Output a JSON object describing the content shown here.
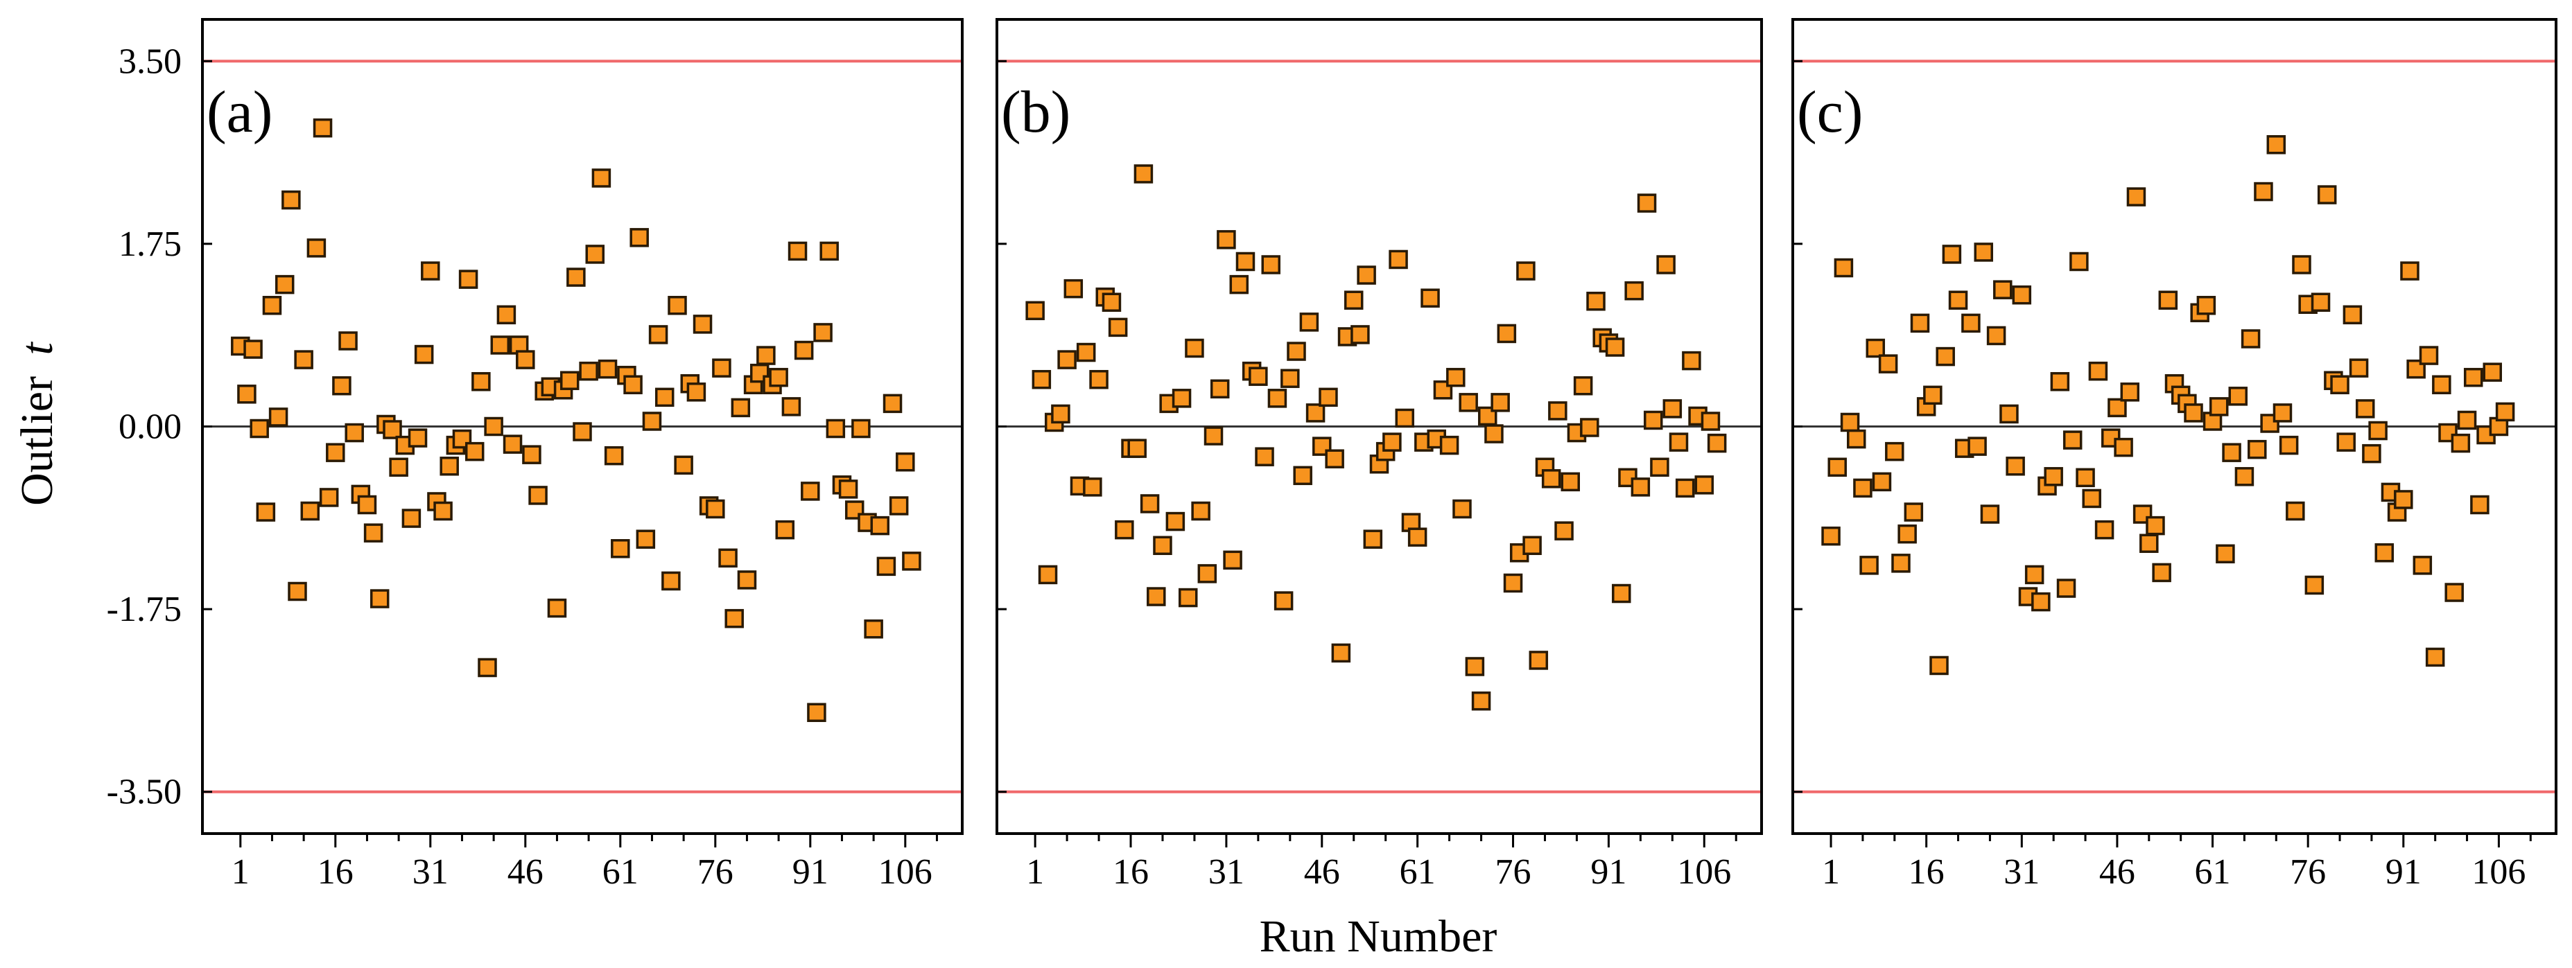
{
  "colors": {
    "point_fill": "#f7931e",
    "limit_line": "#f0696b",
    "zero_line": "#333333"
  },
  "chart_data": {
    "type": "scatter",
    "ylabel": "Outlier",
    "ylabel_italic": "t",
    "xlabel": "Run Number",
    "ylim": [
      -3.9,
      3.9
    ],
    "xlim": [
      -5,
      115
    ],
    "y_ticks": [
      3.5,
      1.75,
      0.0,
      -1.75,
      -3.5
    ],
    "y_tick_labels": [
      "3.50",
      "1.75",
      "0.00",
      "-1.75",
      "-3.50"
    ],
    "x_ticks": [
      1,
      16,
      31,
      46,
      61,
      76,
      91,
      106
    ],
    "x_tick_labels": [
      "1",
      "16",
      "31",
      "46",
      "61",
      "76",
      "91",
      "106"
    ],
    "x_minor_step": 5,
    "reference_lines": [
      3.5,
      -3.5
    ],
    "zero_line": 0,
    "panels": [
      {
        "label": "(a)",
        "y": [
          0.77,
          0.31,
          0.74,
          -0.02,
          -0.82,
          1.16,
          0.09,
          1.36,
          2.17,
          -1.58,
          0.64,
          -0.81,
          1.71,
          2.86,
          -0.68,
          -0.25,
          0.39,
          0.82,
          -0.06,
          -0.65,
          -0.75,
          -1.02,
          -1.65,
          0.02,
          -0.03,
          -0.39,
          -0.18,
          -0.88,
          -0.11,
          0.69,
          1.49,
          -0.72,
          -0.81,
          -0.38,
          -0.18,
          -0.12,
          1.41,
          -0.24,
          0.43,
          -2.31,
          0.0,
          0.78,
          1.07,
          -0.17,
          0.78,
          0.64,
          -0.27,
          -0.66,
          0.34,
          0.38,
          -1.74,
          0.35,
          0.44,
          1.43,
          -0.05,
          0.53,
          1.65,
          2.38,
          0.55,
          -0.28,
          -1.17,
          0.49,
          0.4,
          1.81,
          -1.08,
          0.05,
          0.88,
          0.28,
          -1.48,
          1.16,
          -0.37,
          0.41,
          0.33,
          0.98,
          -0.76,
          -0.79,
          0.56,
          -1.26,
          -1.84,
          0.18,
          -1.47,
          0.4,
          0.51,
          0.68,
          0.4,
          0.47,
          -0.99,
          0.19,
          1.68,
          0.73,
          -0.62,
          -2.74,
          0.9,
          1.68,
          -0.02,
          -0.56,
          -0.6,
          -0.8,
          -0.02,
          -0.92,
          -1.94,
          -0.95,
          -1.34,
          0.22,
          -0.76,
          -0.34,
          -1.29
        ]
      },
      {
        "label": "(b)",
        "y": [
          1.11,
          0.45,
          -1.42,
          0.04,
          0.12,
          0.64,
          1.32,
          -0.57,
          0.71,
          -0.58,
          0.45,
          1.24,
          1.19,
          0.95,
          -0.99,
          -0.21,
          -0.21,
          2.42,
          -0.74,
          -1.63,
          -1.14,
          0.22,
          -0.91,
          0.27,
          -1.64,
          0.75,
          -0.81,
          -1.41,
          -0.09,
          0.36,
          1.79,
          -1.28,
          1.36,
          1.58,
          0.53,
          0.48,
          -0.29,
          1.55,
          0.27,
          -1.67,
          0.46,
          0.72,
          -0.47,
          1.0,
          0.13,
          -0.19,
          0.28,
          -0.31,
          -2.17,
          0.86,
          1.21,
          0.88,
          1.45,
          -1.08,
          -0.36,
          -0.24,
          -0.15,
          1.6,
          0.08,
          -0.92,
          -1.06,
          -0.15,
          1.23,
          -0.12,
          0.35,
          -0.18,
          0.47,
          -0.79,
          0.23,
          -2.3,
          -2.63,
          0.1,
          -0.07,
          0.23,
          0.89,
          -1.5,
          -1.21,
          1.49,
          -1.14,
          -2.24,
          -0.39,
          -0.5,
          0.15,
          -1.0,
          -0.53,
          -0.06,
          0.39,
          -0.01,
          1.2,
          0.85,
          0.8,
          0.76,
          -1.6,
          -0.49,
          1.3,
          -0.58,
          2.14,
          0.06,
          -0.39,
          1.55,
          0.17,
          -0.15,
          -0.59,
          0.63,
          0.1,
          -0.56,
          0.05,
          -0.16
        ]
      },
      {
        "label": "(c)",
        "y": [
          -1.05,
          -0.39,
          1.52,
          0.04,
          -0.12,
          -0.59,
          -1.33,
          0.75,
          -0.53,
          0.6,
          -0.24,
          -1.31,
          -1.03,
          -0.82,
          0.99,
          0.19,
          0.3,
          -2.29,
          0.67,
          1.65,
          1.21,
          -0.21,
          0.99,
          -0.19,
          1.67,
          -0.84,
          0.87,
          1.31,
          0.12,
          -0.38,
          1.26,
          -1.63,
          -1.42,
          -1.68,
          -0.57,
          -0.48,
          0.43,
          -1.55,
          -0.13,
          1.58,
          -0.49,
          -0.69,
          0.53,
          -0.99,
          -0.11,
          0.18,
          -0.2,
          0.33,
          2.2,
          -0.84,
          -1.12,
          -0.95,
          -1.4,
          1.21,
          0.41,
          0.3,
          0.22,
          0.13,
          1.09,
          1.16,
          0.05,
          0.19,
          -1.22,
          -0.25,
          0.29,
          -0.48,
          0.84,
          -0.22,
          2.25,
          0.03,
          2.7,
          0.13,
          -0.18,
          -0.81,
          1.55,
          1.17,
          -1.52,
          1.19,
          2.22,
          0.44,
          0.4,
          -0.15,
          1.07,
          0.56,
          0.17,
          -0.26,
          -0.04,
          -1.21,
          -0.63,
          -0.82,
          -0.7,
          1.49,
          0.55,
          -1.33,
          0.68,
          -2.21,
          0.4,
          -0.06,
          -1.59,
          -0.16,
          0.06,
          0.47,
          -0.75,
          -0.08,
          0.52,
          0.0,
          0.14
        ]
      }
    ]
  }
}
